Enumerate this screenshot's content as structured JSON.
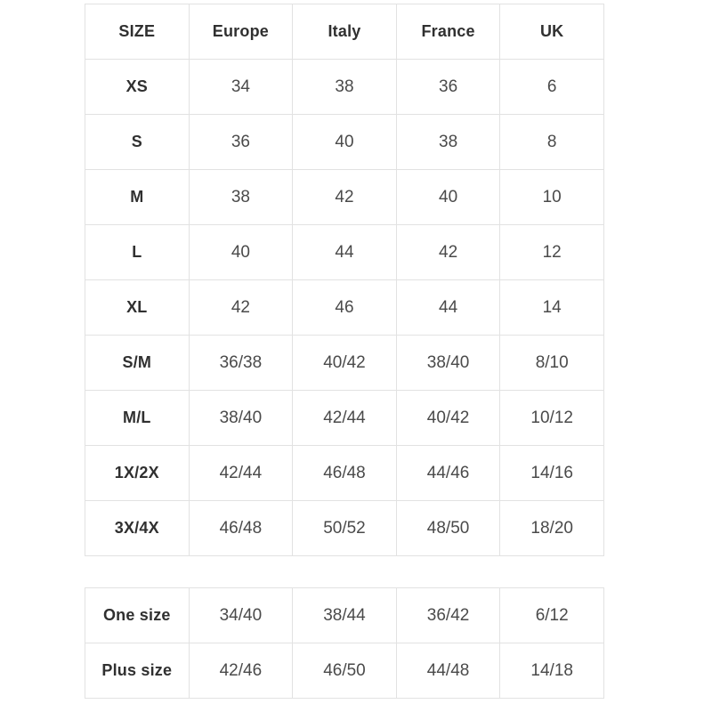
{
  "main_table": {
    "headers": [
      "SIZE",
      "Europe",
      "Italy",
      "France",
      "UK"
    ],
    "rows": [
      {
        "size": "XS",
        "values": [
          "34",
          "38",
          "36",
          "6"
        ]
      },
      {
        "size": "S",
        "values": [
          "36",
          "40",
          "38",
          "8"
        ]
      },
      {
        "size": "M",
        "values": [
          "38",
          "42",
          "40",
          "10"
        ]
      },
      {
        "size": "L",
        "values": [
          "40",
          "44",
          "42",
          "12"
        ]
      },
      {
        "size": "XL",
        "values": [
          "42",
          "46",
          "44",
          "14"
        ]
      },
      {
        "size": "S/M",
        "values": [
          "36/38",
          "40/42",
          "38/40",
          "8/10"
        ]
      },
      {
        "size": "M/L",
        "values": [
          "38/40",
          "42/44",
          "40/42",
          "10/12"
        ]
      },
      {
        "size": "1X/2X",
        "values": [
          "42/44",
          "46/48",
          "44/46",
          "14/16"
        ]
      },
      {
        "size": "3X/4X",
        "values": [
          "46/48",
          "50/52",
          "48/50",
          "18/20"
        ]
      }
    ]
  },
  "secondary_table": {
    "rows": [
      {
        "size": "One size",
        "values": [
          "34/40",
          "38/44",
          "36/42",
          "6/12"
        ]
      },
      {
        "size": "Plus size",
        "values": [
          "42/46",
          "46/50",
          "44/48",
          "14/18"
        ]
      }
    ]
  },
  "colors": {
    "background": "#ffffff",
    "border": "#e2e2e2",
    "label_text": "#303030",
    "value_text": "#4a4a4a"
  }
}
